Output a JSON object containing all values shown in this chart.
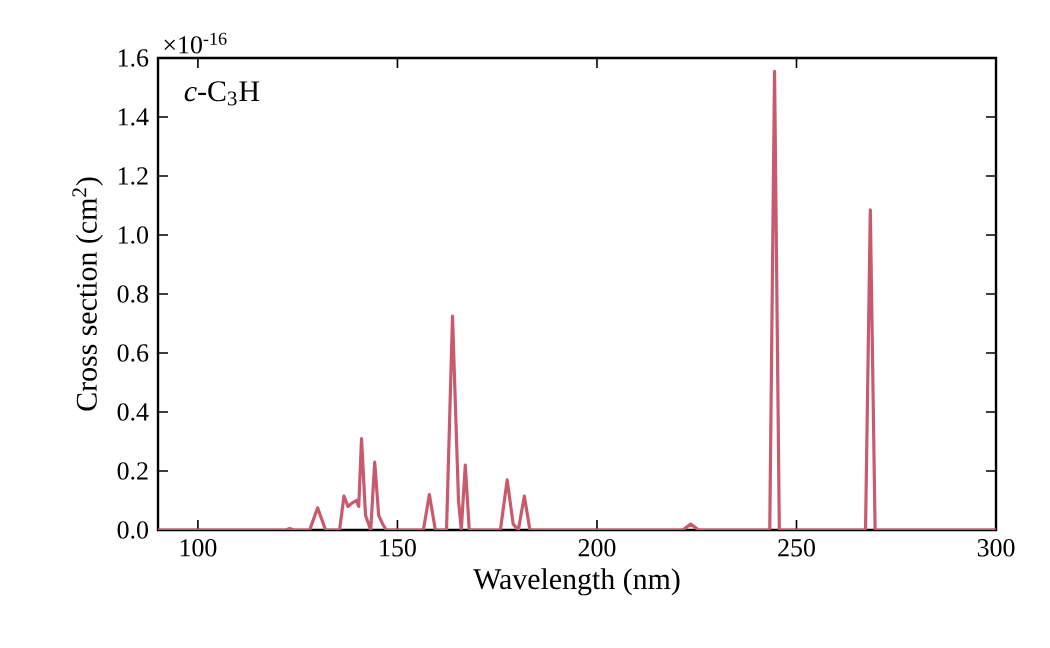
{
  "chart_data": {
    "type": "line",
    "title": "*c*-C$_{3}$H",
    "xlabel": "Wavelength (nm)",
    "ylabel": "Cross section (cm$^{2}$)",
    "annotations": [
      "×10$^{-16}$"
    ],
    "xlim": [
      90,
      300
    ],
    "ylim": [
      0,
      1.6
    ],
    "xticks": [
      100,
      150,
      200,
      250,
      300
    ],
    "yticks": [
      {
        "value": 0,
        "label": "0.0"
      },
      {
        "value": 0.2,
        "label": "0.2"
      },
      {
        "value": 0.4,
        "label": "0.4"
      },
      {
        "value": 0.6,
        "label": "0.6"
      },
      {
        "value": 0.8,
        "label": "0.8"
      },
      {
        "value": 1.0,
        "label": "1.0"
      },
      {
        "value": 1.2,
        "label": "1.2"
      },
      {
        "value": 1.4,
        "label": "1.4"
      },
      {
        "value": 1.6,
        "label": "1.6"
      }
    ],
    "series": [
      {
        "color": "#c95a6e",
        "x": [
          90,
          120,
          122,
          123,
          124,
          128,
          130,
          132,
          134,
          135.5,
          136.6,
          137.6,
          138.5,
          139.7,
          140.3,
          141,
          142,
          143.3,
          144.3,
          145.3,
          146.3,
          147.2,
          150,
          156.5,
          158,
          159.5,
          162.3,
          163.8,
          165.3,
          166,
          167,
          168,
          175.8,
          177.5,
          179,
          180.3,
          181.8,
          183.2,
          221.5,
          223.5,
          225.5,
          243.3,
          244.5,
          245.7,
          267.3,
          268.5,
          269.7,
          300
        ],
        "values": [
          0,
          0,
          0,
          0.005,
          0,
          0,
          0.075,
          0,
          0,
          0,
          0.115,
          0.08,
          0.09,
          0.1,
          0.08,
          0.31,
          0.05,
          0,
          0.23,
          0.05,
          0.02,
          0,
          0,
          0,
          0.12,
          0,
          0,
          0.725,
          0.1,
          0,
          0.22,
          0,
          0,
          0.17,
          0.02,
          0,
          0.115,
          0,
          0,
          0.02,
          0,
          0,
          1.555,
          0,
          0,
          1.085,
          0,
          0
        ]
      }
    ]
  }
}
